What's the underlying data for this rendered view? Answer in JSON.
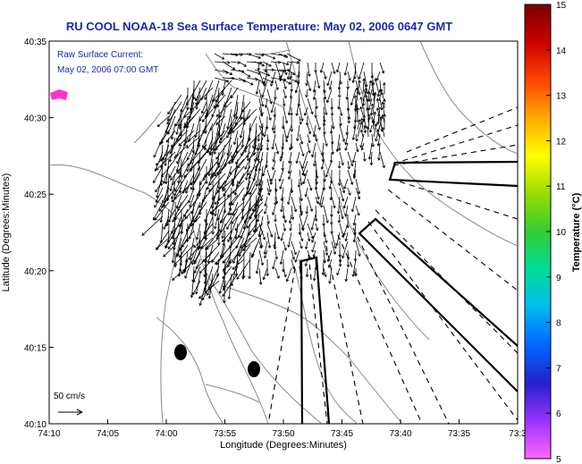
{
  "title": "RU COOL  NOAA-18  Sea Surface Temperature:  May 02, 2006 0647 GMT",
  "annotation": {
    "line1": "Raw Surface Current:",
    "line2": "May 02, 2006 07:00 GMT"
  },
  "axes": {
    "xlabel": "Longitude (Degrees:Minutes)",
    "ylabel": "Latitude (Degrees:Minutes)",
    "x_ticks": [
      "74:10",
      "74:05",
      "74:00",
      "73:55",
      "73:50",
      "73:45",
      "73:40",
      "73:35",
      "73:3"
    ],
    "y_ticks": [
      "40:35",
      "40:30",
      "40:25",
      "40:20",
      "40:15",
      "40:10"
    ]
  },
  "scale": {
    "label": "50 cm/s"
  },
  "colorbar": {
    "label": "Temperature (°C)",
    "ticks": [
      "15",
      "14",
      "13",
      "12",
      "11",
      "10",
      "9",
      "8",
      "7",
      "6",
      "5"
    ],
    "colors": [
      "#ff66ff",
      "#9933ff",
      "#2222cc",
      "#0066ff",
      "#00bbee",
      "#00dd99",
      "#33cc33",
      "#99dd00",
      "#ffff00",
      "#ffaa00",
      "#ff4400",
      "#cc0000",
      "#770000"
    ]
  },
  "markers": {
    "fill": "#000000",
    "patch": "#ff33cc"
  }
}
